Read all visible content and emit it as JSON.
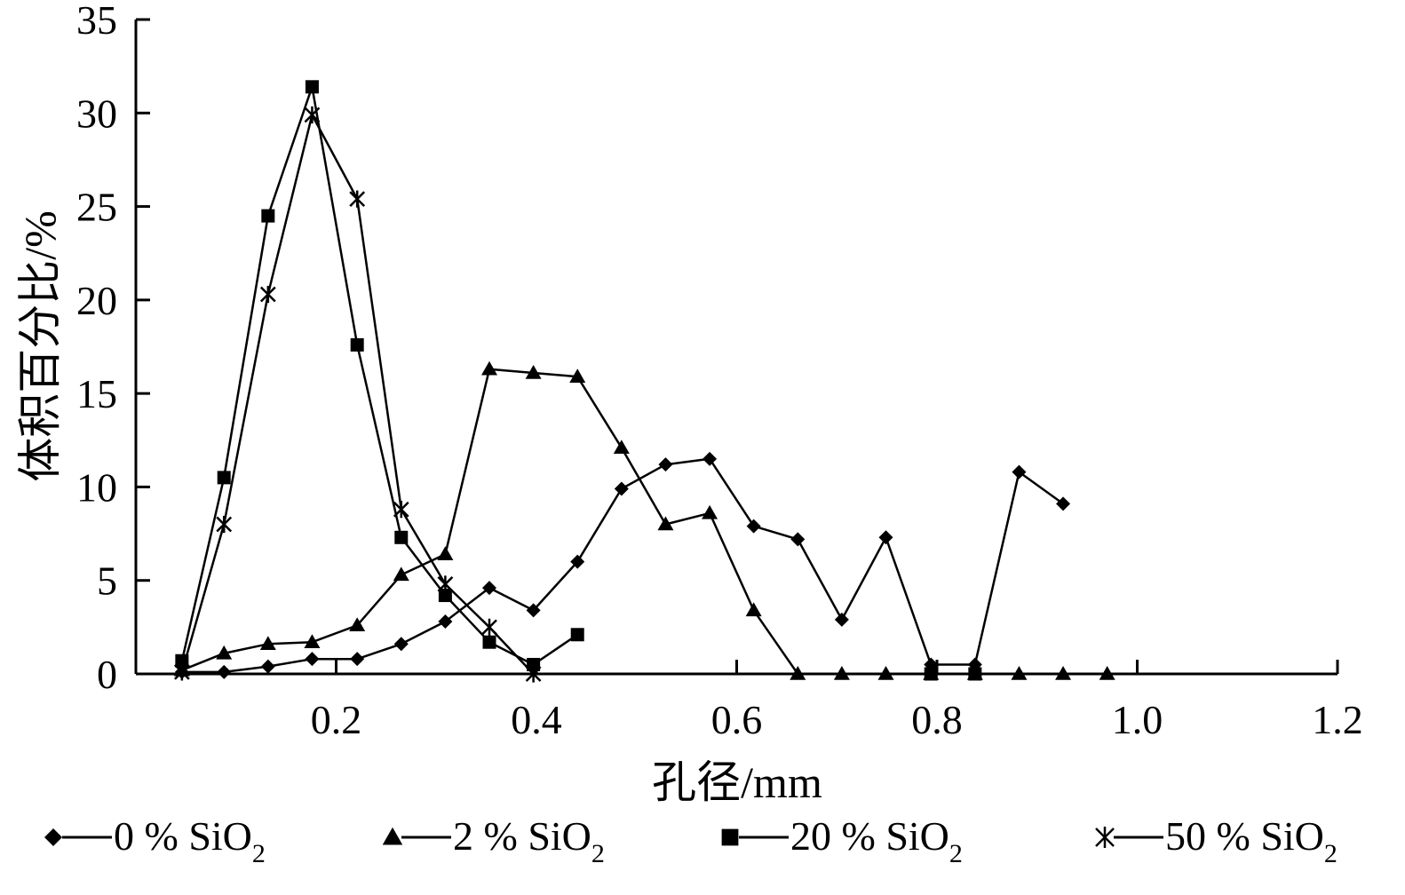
{
  "chart_data": {
    "type": "line",
    "title": "",
    "xlabel": "孔径/mm",
    "ylabel": "体积百分比/%",
    "xlim": [
      0.0,
      1.2
    ],
    "ylim": [
      0,
      35
    ],
    "x_ticks": [
      0.2,
      0.4,
      0.6,
      0.8,
      1.0,
      1.2
    ],
    "x_tick_labels": [
      "0.2",
      "0.4",
      "0.6",
      "0.8",
      "1.0",
      "1.2"
    ],
    "y_ticks": [
      0,
      5,
      10,
      15,
      20,
      25,
      30,
      35
    ],
    "y_tick_labels": [
      "0",
      "5",
      "10",
      "15",
      "20",
      "25",
      "30",
      "35"
    ],
    "grid": false,
    "legend_position": "bottom",
    "series": [
      {
        "name": "0 % SiO2",
        "legend_main": "0 % SiO",
        "legend_sub": "2",
        "marker": "diamond",
        "points": [
          [
            0.046,
            0.1
          ],
          [
            0.088,
            0.1
          ],
          [
            0.132,
            0.4
          ],
          [
            0.176,
            0.8
          ],
          [
            0.221,
            0.8
          ],
          [
            0.265,
            1.6
          ],
          [
            0.309,
            2.8
          ],
          [
            0.353,
            4.6
          ],
          [
            0.397,
            3.4
          ],
          [
            0.441,
            6.0
          ],
          [
            0.485,
            9.9
          ],
          [
            0.529,
            11.2
          ],
          [
            0.573,
            11.5
          ],
          [
            0.617,
            7.9
          ],
          [
            0.661,
            7.2
          ],
          [
            0.705,
            2.9
          ],
          [
            0.749,
            7.3
          ],
          [
            0.794,
            0.5
          ],
          [
            0.838,
            0.5
          ],
          [
            0.882,
            10.8
          ],
          [
            0.926,
            9.1
          ]
        ]
      },
      {
        "name": "2 % SiO2",
        "legend_main": "2 % SiO",
        "legend_sub": "2",
        "marker": "triangle",
        "points": [
          [
            0.046,
            0.2
          ],
          [
            0.088,
            1.1
          ],
          [
            0.132,
            1.6
          ],
          [
            0.176,
            1.7
          ],
          [
            0.221,
            2.6
          ],
          [
            0.265,
            5.3
          ],
          [
            0.309,
            6.4
          ],
          [
            0.353,
            16.3
          ],
          [
            0.397,
            16.1
          ],
          [
            0.441,
            15.9
          ],
          [
            0.485,
            12.1
          ],
          [
            0.529,
            8.0
          ],
          [
            0.573,
            8.6
          ],
          [
            0.617,
            3.4
          ],
          [
            0.661,
            0.0
          ],
          [
            0.705,
            0.0
          ],
          [
            0.749,
            0.0
          ],
          [
            0.794,
            0.0
          ],
          [
            0.838,
            0.0
          ],
          [
            0.882,
            0.0
          ],
          [
            0.926,
            0.0
          ],
          [
            0.97,
            0.0
          ]
        ]
      },
      {
        "name": "20 % SiO2",
        "legend_main": "20 % SiO",
        "legend_sub": "2",
        "marker": "square",
        "segments": [
          [
            [
              0.046,
              0.7
            ],
            [
              0.088,
              10.5
            ],
            [
              0.132,
              24.5
            ],
            [
              0.176,
              31.4
            ],
            [
              0.221,
              17.6
            ],
            [
              0.265,
              7.3
            ],
            [
              0.309,
              4.2
            ],
            [
              0.353,
              1.7
            ],
            [
              0.397,
              0.5
            ],
            [
              0.441,
              2.1
            ]
          ],
          [
            [
              0.794,
              0.0
            ],
            [
              0.838,
              0.0
            ]
          ]
        ]
      },
      {
        "name": "50 % SiO2",
        "legend_main": "50 % SiO",
        "legend_sub": "2",
        "marker": "star",
        "points": [
          [
            0.046,
            0.1
          ],
          [
            0.088,
            8.0
          ],
          [
            0.132,
            20.3
          ],
          [
            0.176,
            29.9
          ],
          [
            0.221,
            25.4
          ],
          [
            0.265,
            8.8
          ],
          [
            0.309,
            4.8
          ],
          [
            0.353,
            2.5
          ],
          [
            0.397,
            0.0
          ]
        ]
      }
    ]
  }
}
